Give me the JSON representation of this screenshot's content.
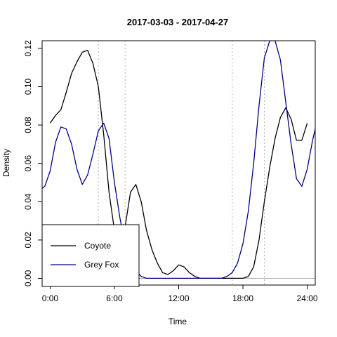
{
  "chart_data": {
    "type": "line",
    "title": "2017-03-03 - 2017-04-27",
    "xlabel": "Time",
    "ylabel": "Density",
    "xlim": [
      -0.75,
      24.75
    ],
    "ylim": [
      -0.0035,
      0.124
    ],
    "x_ticks": [
      0,
      6,
      12,
      18,
      24
    ],
    "x_tick_labels": [
      "0:00",
      "6:00",
      "12:00",
      "18:00",
      "24:00"
    ],
    "y_ticks": [
      0,
      0.02,
      0.04,
      0.06,
      0.08,
      0.1,
      0.12
    ],
    "y_tick_labels": [
      "0.00",
      "0.02",
      "0.04",
      "0.06",
      "0.08",
      "0.10",
      "0.12"
    ],
    "reference_lines": {
      "vertical_dotted_x": [
        4.5,
        7.0,
        17.0,
        20.0
      ],
      "horizontal_y": 0.0
    },
    "legend": {
      "placement": "bottom-left",
      "entries": [
        "Coyote",
        "Grey Fox"
      ]
    },
    "series": [
      {
        "name": "Coyote",
        "color": "#000000",
        "x": [
          0,
          0.5,
          1,
          1.5,
          2,
          2.5,
          3,
          3.5,
          4,
          4.5,
          5,
          5.5,
          6,
          6.5,
          7,
          7.5,
          8,
          8.5,
          9,
          9.5,
          10,
          10.5,
          11,
          11.5,
          12,
          12.5,
          13,
          13.5,
          14,
          14.5,
          15,
          15.5,
          16,
          16.5,
          17,
          17.5,
          18,
          18.5,
          19,
          19.5,
          20,
          20.5,
          21,
          21.5,
          22,
          22.5,
          23,
          23.5,
          24
        ],
        "values": [
          0.081,
          0.085,
          0.088,
          0.097,
          0.107,
          0.113,
          0.118,
          0.119,
          0.112,
          0.1,
          0.075,
          0.045,
          0.025,
          0.018,
          0.027,
          0.045,
          0.049,
          0.04,
          0.025,
          0.015,
          0.008,
          0.003,
          0.002,
          0.004,
          0.007,
          0.006,
          0.003,
          0.001,
          0.0,
          0.0,
          0.0,
          0.0,
          0.0,
          0.0,
          0.0,
          0.0,
          0.0,
          0.001,
          0.006,
          0.02,
          0.04,
          0.058,
          0.073,
          0.084,
          0.089,
          0.083,
          0.072,
          0.072,
          0.081
        ]
      },
      {
        "name": "Grey Fox",
        "color": "#00008b",
        "x": [
          -0.75,
          -0.5,
          0,
          0.5,
          1,
          1.5,
          2,
          2.5,
          3,
          3.5,
          4,
          4.5,
          5,
          5.5,
          6,
          6.5,
          7,
          7.5,
          8,
          8.5,
          9,
          9.5,
          10,
          10.5,
          11,
          11.5,
          12,
          12.5,
          13,
          13.5,
          14,
          14.5,
          15,
          15.5,
          16,
          16.5,
          17,
          17.5,
          18,
          18.5,
          19,
          19.5,
          20,
          20.5,
          21,
          21.5,
          22,
          22.5,
          23,
          23.5,
          24,
          24.5,
          24.75
        ],
        "values": [
          0.047,
          0.048,
          0.056,
          0.071,
          0.079,
          0.078,
          0.07,
          0.057,
          0.049,
          0.054,
          0.065,
          0.077,
          0.081,
          0.073,
          0.05,
          0.032,
          0.017,
          0.009,
          0.004,
          0.001,
          0.0,
          0.0,
          0.0,
          0.0,
          0.0,
          0.0,
          0.0,
          0.0,
          0.0,
          0.0,
          0.0,
          0.0,
          0.0,
          0.0,
          0.0,
          0.001,
          0.003,
          0.008,
          0.018,
          0.035,
          0.06,
          0.09,
          0.115,
          0.124,
          0.124,
          0.114,
          0.092,
          0.07,
          0.052,
          0.048,
          0.057,
          0.072,
          0.078
        ]
      }
    ]
  }
}
